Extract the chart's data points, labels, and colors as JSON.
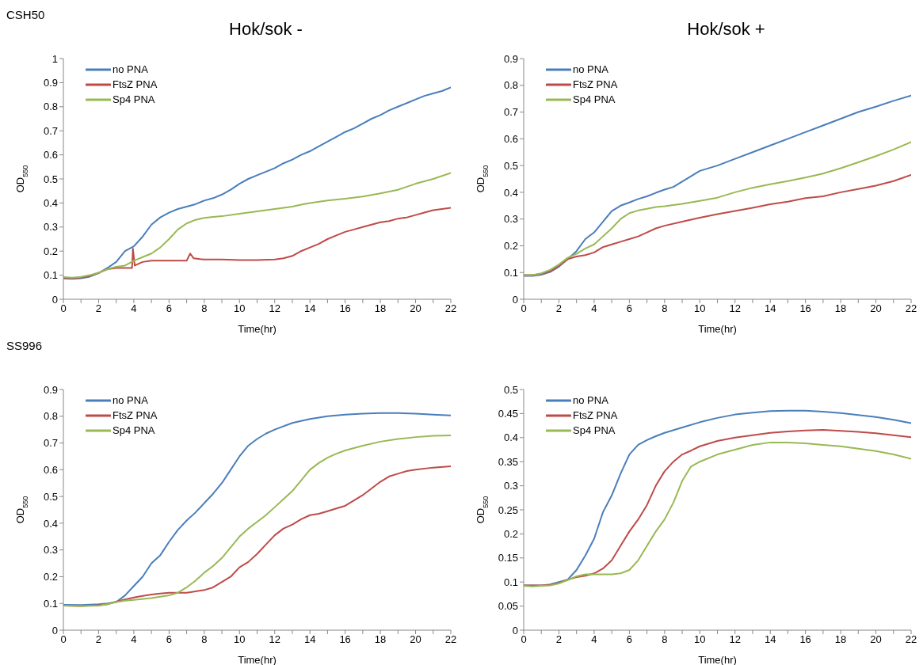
{
  "chart_data": [
    {
      "type": "line",
      "title": "Hok/sok -",
      "annotations": [
        "CSH50"
      ],
      "xlabel": "Time(hr)",
      "ylabel": "OD$_{550}$",
      "legend": "top left",
      "xlim": [
        0,
        22
      ],
      "xticks": [
        0,
        {
          "value": 1,
          "label": null
        },
        2,
        {
          "value": 3,
          "label": null
        },
        4,
        {
          "value": 5,
          "label": null
        },
        6,
        {
          "value": 7,
          "label": null
        },
        8,
        {
          "value": 9,
          "label": null
        },
        10,
        {
          "value": 11,
          "label": null
        },
        12,
        {
          "value": 13,
          "label": null
        },
        14,
        {
          "value": 15,
          "label": null
        },
        16,
        {
          "value": 17,
          "label": null
        },
        18,
        {
          "value": 19,
          "label": null
        },
        20,
        {
          "value": 21,
          "label": null
        },
        22
      ],
      "ylim": [
        0,
        1
      ],
      "yticks": [
        0,
        0.1,
        0.2,
        0.3,
        0.4,
        0.5,
        0.6,
        0.7,
        0.8,
        0.9,
        1
      ],
      "series": [
        {
          "name": "no PNA",
          "color": "#4a7ebb",
          "x": [
            0,
            0.5,
            1,
            1.5,
            2,
            2.5,
            3,
            3.5,
            4,
            4.5,
            5,
            5.5,
            6,
            6.5,
            7,
            7.5,
            8,
            8.5,
            9,
            9.5,
            10,
            10.5,
            11,
            11.5,
            12,
            12.5,
            13,
            13.5,
            14,
            14.5,
            15,
            15.5,
            16,
            16.5,
            17,
            17.5,
            18,
            18.5,
            19,
            19.5,
            20,
            20.5,
            21,
            21.5,
            22
          ],
          "values": [
            0.086,
            0.085,
            0.087,
            0.094,
            0.108,
            0.13,
            0.155,
            0.2,
            0.22,
            0.26,
            0.31,
            0.34,
            0.36,
            0.375,
            0.385,
            0.395,
            0.41,
            0.42,
            0.435,
            0.455,
            0.48,
            0.5,
            0.515,
            0.53,
            0.545,
            0.565,
            0.58,
            0.6,
            0.615,
            0.635,
            0.655,
            0.675,
            0.695,
            0.71,
            0.73,
            0.75,
            0.765,
            0.785,
            0.8,
            0.815,
            0.83,
            0.845,
            0.855,
            0.865,
            0.88
          ]
        },
        {
          "name": "FtsZ PNA",
          "color": "#be4b48",
          "x": [
            0,
            0.5,
            1,
            1.5,
            2,
            2.5,
            3,
            3.5,
            3.9,
            3.95,
            4.05,
            4.5,
            5,
            5.5,
            6,
            6.5,
            7,
            7.2,
            7.4,
            8,
            9,
            10,
            11,
            12,
            12.5,
            13,
            13.5,
            14,
            14.5,
            15,
            15.5,
            16,
            16.5,
            17,
            17.5,
            18,
            18.5,
            19,
            19.5,
            20,
            20.5,
            21,
            21.5,
            22
          ],
          "values": [
            0.09,
            0.088,
            0.09,
            0.097,
            0.11,
            0.125,
            0.13,
            0.13,
            0.13,
            0.21,
            0.14,
            0.155,
            0.16,
            0.16,
            0.16,
            0.16,
            0.16,
            0.19,
            0.17,
            0.165,
            0.165,
            0.163,
            0.163,
            0.165,
            0.17,
            0.18,
            0.2,
            0.215,
            0.23,
            0.25,
            0.265,
            0.28,
            0.29,
            0.3,
            0.31,
            0.32,
            0.325,
            0.335,
            0.34,
            0.35,
            0.36,
            0.37,
            0.375,
            0.38
          ]
        },
        {
          "name": "Sp4 PNA",
          "color": "#98b954",
          "x": [
            0,
            0.5,
            1,
            1.5,
            2,
            2.5,
            3,
            3.5,
            4,
            4.5,
            5,
            5.5,
            6,
            6.5,
            7,
            7.5,
            8,
            8.5,
            9,
            10,
            11,
            12,
            13,
            13.5,
            14,
            15,
            16,
            17,
            18,
            19,
            20,
            21,
            22
          ],
          "values": [
            0.092,
            0.09,
            0.093,
            0.1,
            0.11,
            0.125,
            0.135,
            0.14,
            0.16,
            0.175,
            0.19,
            0.215,
            0.25,
            0.29,
            0.315,
            0.33,
            0.338,
            0.342,
            0.345,
            0.355,
            0.365,
            0.375,
            0.385,
            0.393,
            0.4,
            0.41,
            0.418,
            0.427,
            0.44,
            0.455,
            0.48,
            0.5,
            0.525
          ]
        }
      ]
    },
    {
      "type": "line",
      "title": "Hok/sok +",
      "xlabel": "Time(hr)",
      "ylabel": "OD$_{550}$",
      "legend": "top left",
      "xlim": [
        0,
        22
      ],
      "xticks": [
        0,
        {
          "value": 1,
          "label": null
        },
        2,
        {
          "value": 3,
          "label": null
        },
        4,
        {
          "value": 5,
          "label": null
        },
        6,
        {
          "value": 7,
          "label": null
        },
        8,
        {
          "value": 9,
          "label": null
        },
        10,
        {
          "value": 11,
          "label": null
        },
        12,
        {
          "value": 13,
          "label": null
        },
        14,
        {
          "value": 15,
          "label": null
        },
        16,
        {
          "value": 17,
          "label": null
        },
        18,
        {
          "value": 19,
          "label": null
        },
        20,
        {
          "value": 21,
          "label": null
        },
        22
      ],
      "ylim": [
        0,
        0.9
      ],
      "yticks": [
        0,
        0.1,
        0.2,
        0.3,
        0.4,
        0.5,
        0.6,
        0.7,
        0.8,
        0.9
      ],
      "series": [
        {
          "name": "no PNA",
          "color": "#4a7ebb",
          "x": [
            0,
            0.5,
            1,
            1.5,
            2,
            2.5,
            3,
            3.5,
            4,
            4.5,
            5,
            5.5,
            6,
            6.5,
            7,
            7.5,
            8,
            8.5,
            9,
            9.5,
            10,
            11,
            12,
            13,
            14,
            15,
            16,
            17,
            18,
            19,
            20,
            21,
            22
          ],
          "values": [
            0.087,
            0.087,
            0.092,
            0.102,
            0.122,
            0.15,
            0.18,
            0.225,
            0.25,
            0.29,
            0.33,
            0.35,
            0.362,
            0.375,
            0.385,
            0.398,
            0.41,
            0.42,
            0.44,
            0.46,
            0.48,
            0.5,
            0.525,
            0.55,
            0.575,
            0.6,
            0.625,
            0.65,
            0.675,
            0.7,
            0.72,
            0.742,
            0.762
          ]
        },
        {
          "name": "FtsZ PNA",
          "color": "#be4b48",
          "x": [
            0,
            0.5,
            1,
            1.5,
            2,
            2.5,
            3,
            3.5,
            4,
            4.5,
            5,
            5.5,
            6,
            6.5,
            7,
            7.5,
            8,
            9,
            10,
            11,
            12,
            13,
            14,
            15,
            16,
            17,
            18,
            19,
            20,
            21,
            22
          ],
          "values": [
            0.09,
            0.09,
            0.095,
            0.105,
            0.125,
            0.15,
            0.16,
            0.165,
            0.175,
            0.195,
            0.205,
            0.215,
            0.225,
            0.235,
            0.25,
            0.265,
            0.275,
            0.29,
            0.305,
            0.318,
            0.33,
            0.342,
            0.355,
            0.365,
            0.378,
            0.385,
            0.4,
            0.412,
            0.425,
            0.442,
            0.465
          ]
        },
        {
          "name": "Sp4 PNA",
          "color": "#98b954",
          "x": [
            0,
            0.5,
            1,
            1.5,
            2,
            2.5,
            3,
            3.5,
            4,
            4.5,
            5,
            5.5,
            6,
            6.5,
            7,
            7.5,
            8,
            9,
            10,
            11,
            12,
            13,
            14,
            15,
            16,
            17,
            18,
            19,
            20,
            21,
            22
          ],
          "values": [
            0.09,
            0.09,
            0.097,
            0.11,
            0.13,
            0.155,
            0.17,
            0.19,
            0.205,
            0.235,
            0.265,
            0.3,
            0.322,
            0.332,
            0.338,
            0.345,
            0.348,
            0.357,
            0.368,
            0.38,
            0.4,
            0.417,
            0.43,
            0.442,
            0.455,
            0.47,
            0.49,
            0.512,
            0.535,
            0.56,
            0.588
          ]
        }
      ]
    },
    {
      "type": "line",
      "annotations": [
        "SS996"
      ],
      "xlabel": "Time(hr)",
      "ylabel": "OD$_{550}$",
      "legend": "top left",
      "xlim": [
        0,
        22
      ],
      "xticks": [
        0,
        {
          "value": 1,
          "label": null
        },
        2,
        {
          "value": 3,
          "label": null
        },
        4,
        {
          "value": 5,
          "label": null
        },
        6,
        {
          "value": 7,
          "label": null
        },
        8,
        {
          "value": 9,
          "label": null
        },
        10,
        {
          "value": 11,
          "label": null
        },
        12,
        {
          "value": 13,
          "label": null
        },
        14,
        {
          "value": 15,
          "label": null
        },
        16,
        {
          "value": 17,
          "label": null
        },
        18,
        {
          "value": 19,
          "label": null
        },
        20,
        {
          "value": 21,
          "label": null
        },
        22
      ],
      "ylim": [
        0,
        0.9
      ],
      "yticks": [
        0,
        0.1,
        0.2,
        0.3,
        0.4,
        0.5,
        0.6,
        0.7,
        0.8,
        0.9
      ],
      "series": [
        {
          "name": "no PNA",
          "color": "#4a7ebb",
          "x": [
            0,
            1,
            2,
            2.5,
            3,
            3.5,
            4,
            4.5,
            5,
            5.5,
            6,
            6.5,
            7,
            7.5,
            8,
            8.5,
            9,
            9.5,
            10,
            10.5,
            11,
            11.5,
            12,
            13,
            14,
            15,
            16,
            17,
            18,
            19,
            20,
            21,
            22
          ],
          "values": [
            0.095,
            0.094,
            0.097,
            0.1,
            0.105,
            0.13,
            0.165,
            0.2,
            0.25,
            0.28,
            0.33,
            0.375,
            0.41,
            0.44,
            0.475,
            0.51,
            0.55,
            0.6,
            0.65,
            0.69,
            0.715,
            0.735,
            0.75,
            0.775,
            0.79,
            0.8,
            0.806,
            0.81,
            0.812,
            0.812,
            0.81,
            0.806,
            0.803
          ]
        },
        {
          "name": "FtsZ PNA",
          "color": "#be4b48",
          "x": [
            0,
            1,
            2,
            2.5,
            3,
            3.5,
            4,
            4.5,
            5,
            5.5,
            6,
            6.5,
            7,
            7.5,
            8,
            8.5,
            9,
            9.5,
            10,
            10.5,
            11,
            11.5,
            12,
            12.5,
            13,
            13.5,
            14,
            14.5,
            15,
            15.5,
            16,
            16.5,
            17,
            17.5,
            18,
            18.5,
            19,
            19.5,
            20,
            21,
            22
          ],
          "values": [
            0.092,
            0.09,
            0.093,
            0.097,
            0.107,
            0.115,
            0.122,
            0.128,
            0.133,
            0.137,
            0.14,
            0.14,
            0.14,
            0.145,
            0.15,
            0.16,
            0.18,
            0.2,
            0.235,
            0.255,
            0.285,
            0.32,
            0.355,
            0.38,
            0.395,
            0.415,
            0.43,
            0.435,
            0.445,
            0.455,
            0.465,
            0.485,
            0.505,
            0.53,
            0.555,
            0.575,
            0.585,
            0.595,
            0.6,
            0.608,
            0.613
          ]
        },
        {
          "name": "Sp4 PNA",
          "color": "#98b954",
          "x": [
            0,
            1,
            2,
            2.5,
            3,
            3.5,
            4,
            5,
            6,
            6.5,
            7,
            7.5,
            8,
            8.5,
            9,
            9.5,
            10,
            10.5,
            11,
            11.5,
            12,
            12.5,
            13,
            13.5,
            14,
            14.5,
            15,
            15.5,
            16,
            17,
            18,
            19,
            20,
            21,
            22
          ],
          "values": [
            0.092,
            0.09,
            0.092,
            0.097,
            0.105,
            0.11,
            0.113,
            0.12,
            0.13,
            0.14,
            0.16,
            0.185,
            0.215,
            0.24,
            0.27,
            0.31,
            0.35,
            0.38,
            0.405,
            0.43,
            0.46,
            0.49,
            0.52,
            0.56,
            0.6,
            0.625,
            0.645,
            0.66,
            0.672,
            0.69,
            0.705,
            0.715,
            0.722,
            0.727,
            0.728
          ]
        }
      ]
    },
    {
      "type": "line",
      "xlabel": "Time(hr)",
      "ylabel": "OD$_{550}$",
      "legend": "top left",
      "xlim": [
        0,
        22
      ],
      "xticks": [
        0,
        {
          "value": 1,
          "label": null
        },
        2,
        {
          "value": 3,
          "label": null
        },
        4,
        {
          "value": 5,
          "label": null
        },
        6,
        {
          "value": 7,
          "label": null
        },
        8,
        {
          "value": 9,
          "label": null
        },
        10,
        {
          "value": 11,
          "label": null
        },
        12,
        {
          "value": 13,
          "label": null
        },
        14,
        {
          "value": 15,
          "label": null
        },
        16,
        {
          "value": 17,
          "label": null
        },
        18,
        {
          "value": 19,
          "label": null
        },
        20,
        {
          "value": 21,
          "label": null
        },
        22
      ],
      "ylim": [
        0,
        0.5
      ],
      "yticks": [
        0,
        0.05,
        0.1,
        0.15,
        0.2,
        0.25,
        0.3,
        0.35,
        0.4,
        0.45,
        0.5
      ],
      "series": [
        {
          "name": "no PNA",
          "color": "#4a7ebb",
          "x": [
            0,
            1,
            1.5,
            2,
            2.5,
            3,
            3.5,
            4,
            4.5,
            5,
            5.5,
            6,
            6.5,
            7,
            7.5,
            8,
            9,
            10,
            11,
            12,
            13,
            14,
            15,
            16,
            17,
            18,
            19,
            20,
            21,
            22
          ],
          "values": [
            0.093,
            0.093,
            0.095,
            0.1,
            0.105,
            0.125,
            0.155,
            0.19,
            0.245,
            0.28,
            0.325,
            0.365,
            0.385,
            0.395,
            0.403,
            0.41,
            0.421,
            0.432,
            0.441,
            0.448,
            0.452,
            0.455,
            0.456,
            0.456,
            0.454,
            0.451,
            0.447,
            0.443,
            0.437,
            0.43
          ]
        },
        {
          "name": "FtsZ PNA",
          "color": "#be4b48",
          "x": [
            0,
            1,
            1.5,
            2,
            2.5,
            3,
            3.5,
            4,
            4.5,
            5,
            5.5,
            6,
            6.5,
            7,
            7.5,
            8,
            8.5,
            9,
            9.5,
            10,
            11,
            12,
            13,
            14,
            15,
            16,
            17,
            18,
            19,
            20,
            21,
            22
          ],
          "values": [
            0.093,
            0.093,
            0.094,
            0.098,
            0.105,
            0.11,
            0.113,
            0.118,
            0.128,
            0.145,
            0.175,
            0.205,
            0.23,
            0.26,
            0.3,
            0.33,
            0.35,
            0.365,
            0.373,
            0.382,
            0.393,
            0.4,
            0.405,
            0.41,
            0.413,
            0.415,
            0.416,
            0.414,
            0.412,
            0.409,
            0.405,
            0.401
          ]
        },
        {
          "name": "Sp4 PNA",
          "color": "#98b954",
          "x": [
            0,
            0.5,
            1,
            1.5,
            2,
            2.5,
            3,
            3.5,
            4,
            5,
            5.5,
            6,
            6.5,
            7,
            7.5,
            8,
            8.5,
            9,
            9.5,
            10,
            11,
            12,
            13,
            14,
            15,
            16,
            17,
            18,
            19,
            20,
            21,
            22
          ],
          "values": [
            0.092,
            0.091,
            0.092,
            0.093,
            0.097,
            0.104,
            0.112,
            0.116,
            0.116,
            0.116,
            0.118,
            0.125,
            0.145,
            0.175,
            0.205,
            0.23,
            0.265,
            0.31,
            0.34,
            0.35,
            0.365,
            0.375,
            0.385,
            0.39,
            0.39,
            0.388,
            0.385,
            0.382,
            0.377,
            0.372,
            0.365,
            0.356
          ]
        }
      ]
    }
  ]
}
